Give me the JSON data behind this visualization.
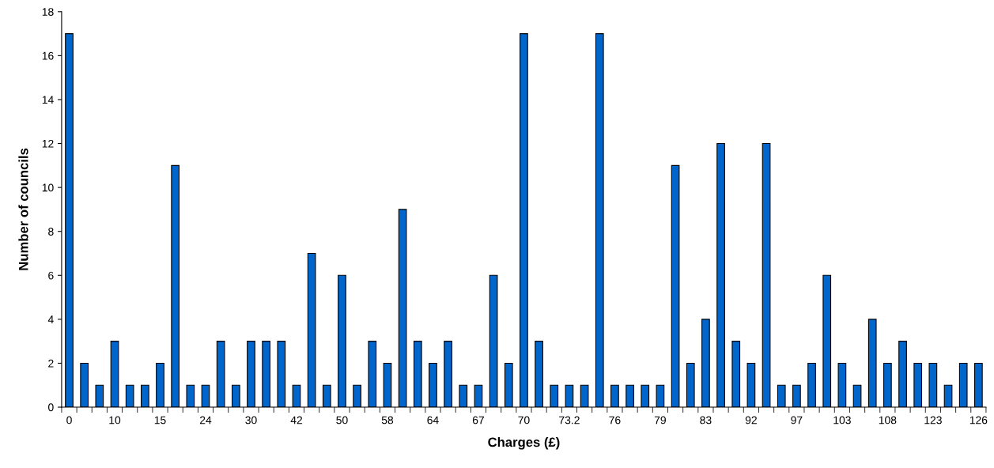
{
  "chart_data": {
    "type": "bar",
    "xlabel": "Charges (£)",
    "ylabel": "Number of councils",
    "categories": [
      "0",
      null,
      null,
      "10",
      null,
      null,
      "15",
      null,
      null,
      "24",
      null,
      null,
      "30",
      null,
      null,
      "42",
      null,
      null,
      "50",
      null,
      null,
      "58",
      null,
      null,
      "64",
      null,
      null,
      "67",
      null,
      null,
      "70",
      null,
      null,
      "73.2",
      null,
      null,
      "76",
      null,
      null,
      "79",
      null,
      null,
      "83",
      null,
      null,
      "92",
      null,
      null,
      "97",
      null,
      null,
      "103",
      null,
      null,
      "108",
      null,
      null,
      "123",
      null,
      null,
      "126"
    ],
    "values": [
      17,
      2,
      1,
      3,
      1,
      1,
      2,
      11,
      1,
      1,
      3,
      1,
      3,
      3,
      3,
      1,
      7,
      1,
      6,
      1,
      3,
      2,
      9,
      3,
      2,
      3,
      1,
      1,
      6,
      2,
      17,
      3,
      1,
      1,
      1,
      17,
      1,
      1,
      1,
      1,
      11,
      2,
      4,
      12,
      3,
      2,
      12,
      1,
      1,
      2,
      6,
      2,
      1,
      4,
      2,
      3,
      2,
      2,
      1,
      2,
      2
    ],
    "color": "#0066cc",
    "ylim": [
      0,
      18
    ],
    "yticks": [
      0,
      2,
      4,
      6,
      8,
      10,
      12,
      14,
      16,
      18
    ],
    "grid": false
  }
}
